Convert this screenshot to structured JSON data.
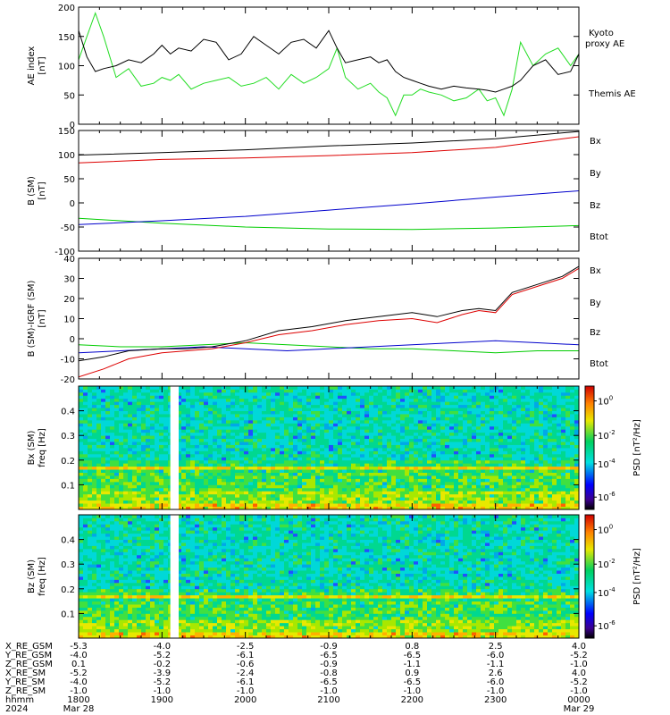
{
  "colors": {
    "black": "#000000",
    "red": "#dd0000",
    "green": "#00cc00",
    "blue": "#0000cc",
    "kyoto": "#22dd22"
  },
  "x_axis": {
    "label_rows": [
      "X_RE_GSM",
      "Y_RE_GSM",
      "Z_RE_GSM",
      "X_RE_SM",
      "Y_RE_SM",
      "Z_RE_SM",
      "hhmm",
      "2024"
    ],
    "columns": [
      {
        "x_hours": 18.0,
        "values": [
          "-5.3",
          "-4.0",
          "0.1",
          "-5.2",
          "-4.0",
          "-1.0",
          "1800",
          "Mar 28"
        ]
      },
      {
        "x_hours": 19.0,
        "values": [
          "-4.0",
          "-5.2",
          "-0.2",
          "-3.9",
          "-5.2",
          "-1.0",
          "1900",
          ""
        ]
      },
      {
        "x_hours": 20.0,
        "values": [
          "-2.5",
          "-6.1",
          "-0.6",
          "-2.4",
          "-6.1",
          "-1.0",
          "2000",
          ""
        ]
      },
      {
        "x_hours": 21.0,
        "values": [
          "-0.9",
          "-6.5",
          "-0.9",
          "-0.8",
          "-6.5",
          "-1.0",
          "2100",
          ""
        ]
      },
      {
        "x_hours": 22.0,
        "values": [
          "0.8",
          "-6.5",
          "-1.1",
          "0.9",
          "-6.5",
          "-1.0",
          "2200",
          ""
        ]
      },
      {
        "x_hours": 23.0,
        "values": [
          "2.5",
          "-6.0",
          "-1.1",
          "2.6",
          "-6.0",
          "-1.0",
          "2300",
          ""
        ]
      },
      {
        "x_hours": 24.0,
        "values": [
          "4.0",
          "-5.2",
          "-1.0",
          "4.0",
          "-5.2",
          "-1.0",
          "0000",
          "Mar 29"
        ]
      }
    ]
  },
  "chart_data": [
    {
      "type": "line",
      "ylabel": "AE index",
      "yunit": "[nT]",
      "ylim": [
        0,
        200
      ],
      "yticks": [
        0,
        50,
        100,
        150,
        200
      ],
      "series": [
        {
          "name": "Kyoto proxy AE",
          "label_lines": [
            "Kyoto",
            "proxy AE"
          ],
          "color": "#22dd22",
          "x": [
            18.0,
            18.1,
            18.2,
            18.3,
            18.45,
            18.6,
            18.75,
            18.9,
            19.0,
            19.1,
            19.2,
            19.35,
            19.5,
            19.65,
            19.8,
            19.95,
            20.1,
            20.25,
            20.4,
            20.55,
            20.7,
            20.85,
            21.0,
            21.1,
            21.2,
            21.35,
            21.5,
            21.6,
            21.7,
            21.8,
            21.9,
            22.0,
            22.1,
            22.2,
            22.35,
            22.5,
            22.65,
            22.8,
            22.9,
            23.0,
            23.1,
            23.2,
            23.3,
            23.45,
            23.6,
            23.75,
            23.9,
            24.0
          ],
          "y": [
            110,
            150,
            190,
            150,
            80,
            95,
            65,
            70,
            80,
            75,
            85,
            60,
            70,
            75,
            80,
            65,
            70,
            80,
            60,
            85,
            70,
            80,
            95,
            130,
            80,
            60,
            70,
            55,
            45,
            15,
            50,
            50,
            60,
            55,
            50,
            40,
            45,
            60,
            40,
            45,
            15,
            60,
            140,
            100,
            120,
            130,
            100,
            120
          ]
        },
        {
          "name": "Themis AE",
          "label_lines": [
            "Themis AE"
          ],
          "color": "#000000",
          "x": [
            18.0,
            18.1,
            18.2,
            18.3,
            18.45,
            18.6,
            18.75,
            18.9,
            19.0,
            19.1,
            19.2,
            19.35,
            19.5,
            19.65,
            19.8,
            19.95,
            20.1,
            20.25,
            20.4,
            20.55,
            20.7,
            20.85,
            21.0,
            21.1,
            21.2,
            21.35,
            21.5,
            21.6,
            21.7,
            21.8,
            21.9,
            22.0,
            22.1,
            22.2,
            22.35,
            22.5,
            22.65,
            22.8,
            22.9,
            23.0,
            23.1,
            23.2,
            23.3,
            23.45,
            23.6,
            23.75,
            23.9,
            24.0
          ],
          "y": [
            160,
            115,
            90,
            95,
            100,
            110,
            105,
            120,
            135,
            120,
            130,
            125,
            145,
            140,
            110,
            120,
            150,
            135,
            120,
            140,
            145,
            130,
            160,
            130,
            105,
            110,
            115,
            105,
            110,
            90,
            80,
            75,
            70,
            65,
            60,
            65,
            62,
            60,
            58,
            55,
            60,
            65,
            75,
            100,
            110,
            85,
            90,
            120
          ]
        }
      ]
    },
    {
      "type": "line",
      "ylabel": "B (SM)",
      "yunit": "[nT]",
      "ylim": [
        -100,
        150
      ],
      "yticks": [
        -100,
        -50,
        0,
        50,
        100,
        150
      ],
      "series": [
        {
          "name": "Bx",
          "color": "#0000cc",
          "x": [
            18,
            19,
            20,
            21,
            22,
            23,
            24
          ],
          "y": [
            -45,
            -37,
            -28,
            -15,
            -2,
            12,
            25
          ]
        },
        {
          "name": "By",
          "color": "#00cc00",
          "x": [
            18,
            19,
            20,
            21,
            22,
            23,
            24
          ],
          "y": [
            -32,
            -42,
            -50,
            -54,
            -55,
            -52,
            -47
          ]
        },
        {
          "name": "Bz",
          "color": "#dd0000",
          "x": [
            18,
            19,
            20,
            21,
            22,
            23,
            24
          ],
          "y": [
            83,
            90,
            93,
            98,
            104,
            115,
            137
          ]
        },
        {
          "name": "Btot",
          "color": "#000000",
          "x": [
            18,
            19,
            20,
            21,
            22,
            23,
            24
          ],
          "y": [
            99,
            104,
            110,
            118,
            124,
            133,
            148
          ]
        }
      ]
    },
    {
      "type": "line",
      "ylabel": "B (SM)-IGRF (SM)",
      "yunit": "[nT]",
      "ylim": [
        -20,
        40
      ],
      "yticks": [
        -20,
        -10,
        0,
        10,
        20,
        30,
        40
      ],
      "series": [
        {
          "name": "Bx",
          "color": "#0000cc",
          "x": [
            18,
            18.5,
            19,
            19.5,
            20,
            20.5,
            21,
            21.5,
            22,
            22.5,
            23,
            23.5,
            24
          ],
          "y": [
            -7,
            -6,
            -5,
            -4,
            -5,
            -6,
            -5,
            -4,
            -3,
            -2,
            -1,
            -2,
            -3
          ]
        },
        {
          "name": "By",
          "color": "#00cc00",
          "x": [
            18,
            18.5,
            19,
            19.5,
            20,
            20.5,
            21,
            21.5,
            22,
            22.5,
            23,
            23.5,
            24
          ],
          "y": [
            -3,
            -4,
            -4,
            -3,
            -2,
            -3,
            -4,
            -5,
            -5,
            -6,
            -7,
            -6,
            -6
          ]
        },
        {
          "name": "Bz",
          "color": "#dd0000",
          "x": [
            18,
            18.3,
            18.6,
            19,
            19.3,
            19.6,
            20,
            20.4,
            20.8,
            21.2,
            21.6,
            22,
            22.3,
            22.6,
            22.8,
            23,
            23.2,
            23.5,
            23.8,
            24
          ],
          "y": [
            -19,
            -15,
            -10,
            -7,
            -6,
            -5,
            -2,
            2,
            4,
            7,
            9,
            10,
            8,
            12,
            14,
            13,
            22,
            26,
            30,
            35
          ]
        },
        {
          "name": "Btot",
          "color": "#000000",
          "x": [
            18,
            18.3,
            18.6,
            19,
            19.3,
            19.6,
            20,
            20.4,
            20.8,
            21.2,
            21.6,
            22,
            22.3,
            22.6,
            22.8,
            23,
            23.2,
            23.5,
            23.8,
            24
          ],
          "y": [
            -11,
            -9,
            -6,
            -5,
            -5,
            -4,
            -1,
            4,
            6,
            9,
            11,
            13,
            11,
            14,
            15,
            14,
            23,
            27,
            31,
            36
          ]
        }
      ]
    },
    {
      "type": "heatmap",
      "ylabel": "Bx (SM)",
      "yunit": "freq [Hz]",
      "ylim": [
        0,
        0.5
      ],
      "yticks": [
        0.1,
        0.2,
        0.3,
        0.4
      ],
      "colorbar": {
        "label": "PSD [nT²/Hz]",
        "scale": "log",
        "ticks": [
          {
            "exp": "0",
            "value": 1
          },
          {
            "exp": "-2",
            "value": 0.01
          },
          {
            "exp": "-4",
            "value": 0.0001
          },
          {
            "exp": "-6",
            "value": 1e-06
          }
        ]
      },
      "data_gap_hours": [
        19.1,
        19.2
      ]
    },
    {
      "type": "heatmap",
      "ylabel": "Bz (SM)",
      "yunit": "freq [Hz]",
      "ylim": [
        0,
        0.5
      ],
      "yticks": [
        0.1,
        0.2,
        0.3,
        0.4
      ],
      "colorbar": {
        "label": "PSD [nT²/Hz]",
        "scale": "log",
        "ticks": [
          {
            "exp": "0",
            "value": 1
          },
          {
            "exp": "-2",
            "value": 0.01
          },
          {
            "exp": "-4",
            "value": 0.0001
          },
          {
            "exp": "-6",
            "value": 1e-06
          }
        ]
      },
      "data_gap_hours": [
        19.1,
        19.2
      ]
    }
  ]
}
